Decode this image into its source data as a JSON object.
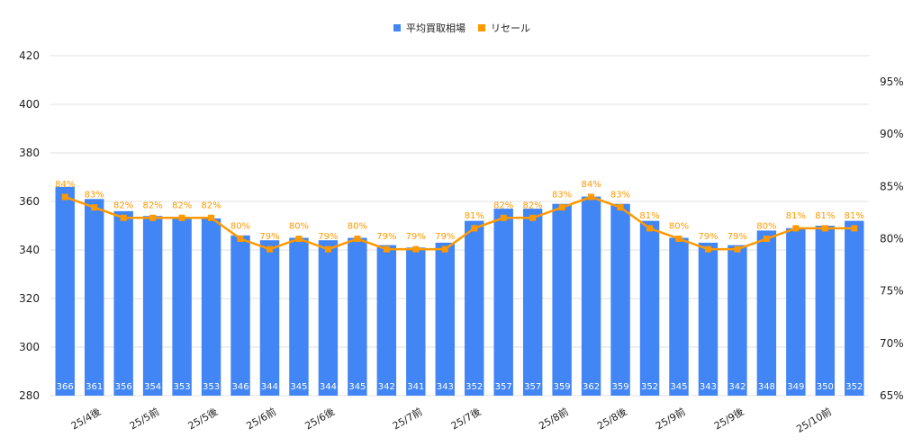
{
  "colors": {
    "bar": "#4285F4",
    "line": "#FF9900",
    "grid": "#E0E0E0",
    "text": "#222222"
  },
  "chart_data": {
    "type": "bar",
    "title": "",
    "xlabel": "",
    "ylabel": "",
    "ylim": [
      280,
      420
    ],
    "y_ticks": [
      280,
      300,
      320,
      340,
      360,
      380,
      400,
      420
    ],
    "y2lim": [
      65,
      97.5
    ],
    "y2_ticks": [
      65,
      70,
      75,
      80,
      85,
      90,
      95
    ],
    "y2_tick_labels": [
      "65%",
      "70%",
      "75%",
      "80%",
      "85%",
      "90%",
      "95%"
    ],
    "grid": true,
    "legend_position": "top-center",
    "x_tick_labels": [
      {
        "index": 1,
        "label": "25/4後"
      },
      {
        "index": 3,
        "label": "25/5前"
      },
      {
        "index": 5,
        "label": "25/5後"
      },
      {
        "index": 7,
        "label": "25/6前"
      },
      {
        "index": 9,
        "label": "25/6後"
      },
      {
        "index": 12,
        "label": "25/7前"
      },
      {
        "index": 14,
        "label": "25/7後"
      },
      {
        "index": 17,
        "label": "25/8前"
      },
      {
        "index": 19,
        "label": "25/8後"
      },
      {
        "index": 21,
        "label": "25/9前"
      },
      {
        "index": 23,
        "label": "25/9後"
      },
      {
        "index": 26,
        "label": "25/10前"
      }
    ],
    "series": [
      {
        "name": "平均買取相場",
        "type": "bar",
        "axis": "left",
        "values": [
          366,
          361,
          356,
          354,
          353,
          353,
          346,
          344,
          345,
          344,
          345,
          342,
          341,
          343,
          352,
          357,
          357,
          359,
          362,
          359,
          352,
          345,
          343,
          342,
          348,
          349,
          350,
          352
        ]
      },
      {
        "name": "リセール",
        "type": "line",
        "axis": "right",
        "values": [
          84,
          83,
          82,
          82,
          82,
          82,
          80,
          79,
          80,
          79,
          80,
          79,
          79,
          79,
          81,
          82,
          82,
          83,
          84,
          83,
          81,
          80,
          79,
          79,
          80,
          81,
          81,
          81
        ],
        "labels": [
          "84%",
          "83%",
          "82%",
          "82%",
          "82%",
          "82%",
          "80%",
          "79%",
          "80%",
          "79%",
          "80%",
          "79%",
          "79%",
          "79%",
          "81%",
          "82%",
          "82%",
          "83%",
          "84%",
          "83%",
          "81%",
          "80%",
          "79%",
          "79%",
          "80%",
          "81%",
          "81%",
          "81%"
        ]
      }
    ]
  }
}
